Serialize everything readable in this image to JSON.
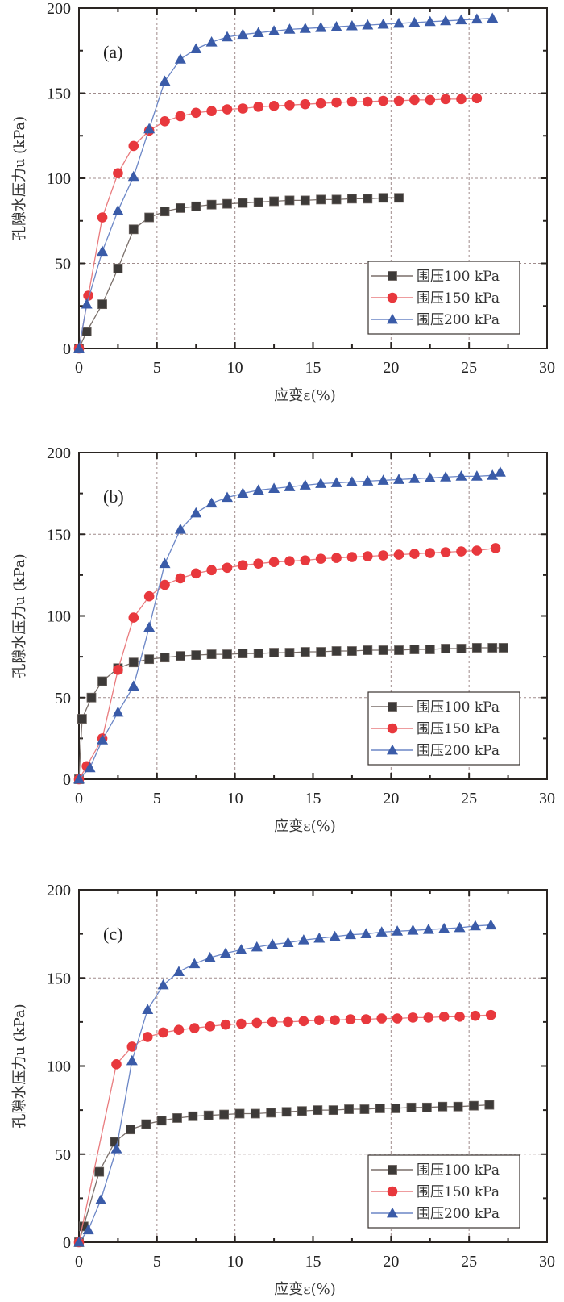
{
  "chart_data": [
    {
      "type": "line",
      "panel_label": "(a)",
      "xlabel": "应变ε(%)",
      "ylabel": "孔隙水压力u (kPa)",
      "xlim": [
        0,
        30
      ],
      "ylim": [
        0,
        200
      ],
      "xticks": [
        "0",
        "5",
        "10",
        "15",
        "20",
        "25",
        "30"
      ],
      "yticks": [
        "0",
        "50",
        "100",
        "150",
        "200"
      ],
      "grid": true,
      "legend_position": "bottom-right",
      "series": [
        {
          "name": "围压100 kPa",
          "marker": "square",
          "color": "#3d3a38",
          "x": [
            0,
            0.5,
            1.5,
            2.5,
            3.5,
            4.5,
            5.5,
            6.5,
            7.5,
            8.5,
            9.5,
            10.5,
            11.5,
            12.5,
            13.5,
            14.5,
            15.5,
            16.5,
            17.5,
            18.5,
            19.5,
            20.5
          ],
          "y": [
            0,
            10,
            26,
            47,
            70,
            77,
            80.5,
            82.5,
            83.5,
            84.5,
            85,
            85.5,
            86,
            86.5,
            87,
            87,
            87.5,
            87.5,
            88,
            88,
            88.5,
            88.5
          ]
        },
        {
          "name": "围压150 kPa",
          "marker": "circle",
          "color": "#e8383d",
          "x": [
            0,
            0.6,
            1.5,
            2.5,
            3.5,
            4.5,
            5.5,
            6.5,
            7.5,
            8.5,
            9.5,
            10.5,
            11.5,
            12.5,
            13.5,
            14.5,
            15.5,
            16.5,
            17.5,
            18.5,
            19.5,
            20.5,
            21.5,
            22.5,
            23.5,
            24.5,
            25.5
          ],
          "y": [
            0,
            31,
            77,
            103,
            119,
            128,
            133.5,
            136.5,
            138.5,
            139.5,
            140.5,
            141,
            142,
            142.5,
            143,
            143.5,
            144,
            144.5,
            145,
            145,
            145.5,
            145.5,
            146,
            146,
            146.5,
            146.5,
            147
          ]
        },
        {
          "name": "围压200 kPa",
          "marker": "triangle",
          "color": "#3a5ba8",
          "x": [
            0,
            0.5,
            1.5,
            2.5,
            3.5,
            4.5,
            5.5,
            6.5,
            7.5,
            8.5,
            9.5,
            10.5,
            11.5,
            12.5,
            13.5,
            14.5,
            15.5,
            16.5,
            17.5,
            18.5,
            19.5,
            20.5,
            21.5,
            22.5,
            23.5,
            24.5,
            25.5,
            26.5
          ],
          "y": [
            0,
            26,
            57,
            81,
            101,
            129,
            157,
            170,
            176,
            180,
            183,
            184.5,
            185.5,
            186.5,
            187.5,
            188,
            188.5,
            189,
            189.5,
            190,
            190.5,
            191,
            191.5,
            192,
            192.5,
            193,
            193.5,
            194
          ]
        }
      ]
    },
    {
      "type": "line",
      "panel_label": "(b)",
      "xlabel": "应变ε(%)",
      "ylabel": "孔隙水压力u (kPa)",
      "xlim": [
        0,
        30
      ],
      "ylim": [
        0,
        200
      ],
      "xticks": [
        "0",
        "5",
        "10",
        "15",
        "20",
        "25",
        "30"
      ],
      "yticks": [
        "0",
        "50",
        "100",
        "150",
        "200"
      ],
      "grid": true,
      "legend_position": "bottom-right",
      "series": [
        {
          "name": "围压100 kPa",
          "marker": "square",
          "color": "#3d3a38",
          "x": [
            0,
            0.2,
            0.8,
            1.5,
            2.5,
            3.5,
            4.5,
            5.5,
            6.5,
            7.5,
            8.5,
            9.5,
            10.5,
            11.5,
            12.5,
            13.5,
            14.5,
            15.5,
            16.5,
            17.5,
            18.5,
            19.5,
            20.5,
            21.5,
            22.5,
            23.5,
            24.5,
            25.5,
            26.5,
            27.2
          ],
          "y": [
            0,
            37,
            50,
            60,
            68,
            71.5,
            73.5,
            74.5,
            75.5,
            76,
            76.5,
            76.5,
            77,
            77,
            77.5,
            77.5,
            78,
            78,
            78.5,
            78.5,
            79,
            79,
            79,
            79.5,
            79.5,
            80,
            80,
            80.5,
            80.5,
            80.5
          ]
        },
        {
          "name": "围压150 kPa",
          "marker": "circle",
          "color": "#e8383d",
          "x": [
            0,
            0.5,
            1.5,
            2.5,
            3.5,
            4.5,
            5.5,
            6.5,
            7.5,
            8.5,
            9.5,
            10.5,
            11.5,
            12.5,
            13.5,
            14.5,
            15.5,
            16.5,
            17.5,
            18.5,
            19.5,
            20.5,
            21.5,
            22.5,
            23.5,
            24.5,
            25.5,
            26.7
          ],
          "y": [
            0,
            8,
            25,
            67,
            99,
            112,
            119,
            123,
            126,
            128,
            129.5,
            131,
            132,
            133,
            133.5,
            134,
            135,
            135.5,
            136,
            136.5,
            137,
            137.5,
            138,
            138.5,
            139,
            139.5,
            140,
            141.5
          ]
        },
        {
          "name": "围压200 kPa",
          "marker": "triangle",
          "color": "#3a5ba8",
          "x": [
            0,
            0.7,
            1.5,
            2.5,
            3.5,
            4.5,
            5.5,
            6.5,
            7.5,
            8.5,
            9.5,
            10.5,
            11.5,
            12.5,
            13.5,
            14.5,
            15.5,
            16.5,
            17.5,
            18.5,
            19.5,
            20.5,
            21.5,
            22.5,
            23.5,
            24.5,
            25.5,
            26.5,
            27
          ],
          "y": [
            0,
            7,
            24,
            41,
            57,
            93,
            132,
            153,
            163,
            169,
            172.5,
            175,
            177,
            178,
            179,
            180,
            181,
            181.5,
            182,
            182.5,
            183,
            183.5,
            184,
            184.5,
            185,
            185.5,
            185.5,
            186,
            188
          ]
        }
      ]
    },
    {
      "type": "line",
      "panel_label": "(c)",
      "xlabel": "应变ε(%)",
      "ylabel": "孔隙水压力u (kPa)",
      "xlim": [
        0,
        30
      ],
      "ylim": [
        0,
        200
      ],
      "xticks": [
        "0",
        "5",
        "10",
        "15",
        "20",
        "25",
        "30"
      ],
      "yticks": [
        "0",
        "50",
        "100",
        "150",
        "200"
      ],
      "grid": true,
      "legend_position": "bottom-right",
      "series": [
        {
          "name": "围压100 kPa",
          "marker": "square",
          "color": "#3d3a38",
          "x": [
            0,
            0.3,
            1.3,
            2.3,
            3.3,
            4.3,
            5.3,
            6.3,
            7.3,
            8.3,
            9.3,
            10.3,
            11.3,
            12.3,
            13.3,
            14.3,
            15.3,
            16.3,
            17.3,
            18.3,
            19.3,
            20.3,
            21.3,
            22.3,
            23.3,
            24.3,
            25.3,
            26.3
          ],
          "y": [
            0,
            9,
            40,
            57,
            64,
            67,
            69,
            70.5,
            71.5,
            72,
            72.5,
            73,
            73,
            73.5,
            74,
            74.5,
            75,
            75,
            75.5,
            75.5,
            76,
            76,
            76.5,
            76.5,
            77,
            77,
            77.5,
            78
          ]
        },
        {
          "name": "围压150 kPa",
          "marker": "circle",
          "color": "#e8383d",
          "x": [
            0,
            2.4,
            3.4,
            4.4,
            5.4,
            6.4,
            7.4,
            8.4,
            9.4,
            10.4,
            11.4,
            12.4,
            13.4,
            14.4,
            15.4,
            16.4,
            17.4,
            18.4,
            19.4,
            20.4,
            21.4,
            22.4,
            23.4,
            24.4,
            25.4,
            26.4
          ],
          "y": [
            0,
            101,
            111,
            116.5,
            119,
            120.5,
            121.5,
            122.5,
            123.5,
            124,
            124.5,
            125,
            125,
            125.5,
            126,
            126,
            126.5,
            126.5,
            127,
            127,
            127.5,
            127.5,
            128,
            128,
            128.5,
            129
          ]
        },
        {
          "name": "围压200 kPa",
          "marker": "triangle",
          "color": "#3a5ba8",
          "x": [
            0,
            0.6,
            1.4,
            2.4,
            3.4,
            4.4,
            5.4,
            6.4,
            7.4,
            8.4,
            9.4,
            10.4,
            11.4,
            12.4,
            13.4,
            14.4,
            15.4,
            16.4,
            17.4,
            18.4,
            19.4,
            20.4,
            21.4,
            22.4,
            23.4,
            24.4,
            25.4,
            26.4
          ],
          "y": [
            0,
            7,
            24,
            53,
            103,
            132,
            146,
            153.5,
            158,
            161.5,
            164,
            166,
            167.5,
            169,
            170,
            171.5,
            172.5,
            173.5,
            174.5,
            175,
            176,
            176.5,
            177,
            177.5,
            178,
            178.5,
            179.5,
            180
          ]
        }
      ]
    }
  ]
}
